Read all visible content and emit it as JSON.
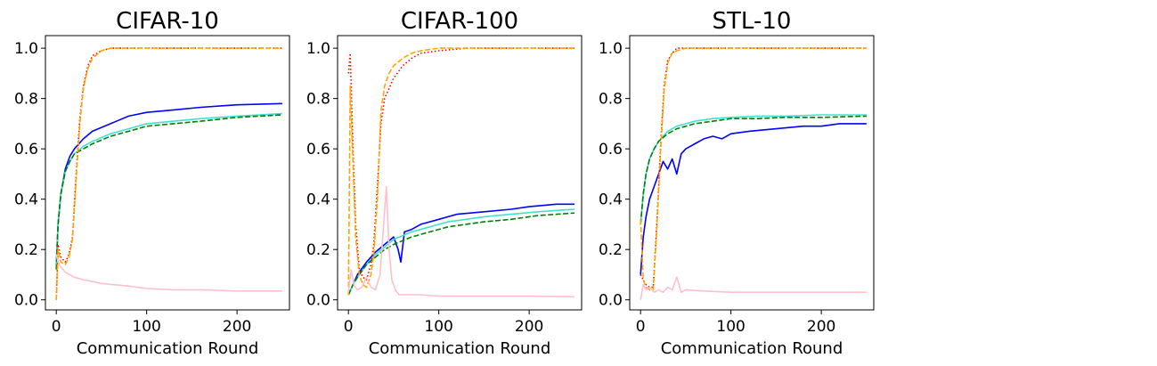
{
  "chart_data": [
    {
      "type": "line",
      "title": "CIFAR-10",
      "xlabel": "Communication Round",
      "ylabel": "",
      "xlim": [
        -12,
        258
      ],
      "ylim": [
        -0.04,
        1.05
      ],
      "xticks": [
        0,
        100,
        200
      ],
      "yticks": [
        0.0,
        0.2,
        0.4,
        0.6,
        0.8,
        1.0
      ],
      "grid": false,
      "series": [
        {
          "color": "#0000ff",
          "style": "solid",
          "x": [
            0,
            2,
            5,
            10,
            15,
            20,
            30,
            40,
            60,
            80,
            100,
            130,
            160,
            200,
            250
          ],
          "y": [
            0.14,
            0.3,
            0.42,
            0.52,
            0.57,
            0.6,
            0.64,
            0.67,
            0.7,
            0.73,
            0.745,
            0.755,
            0.765,
            0.775,
            0.78
          ]
        },
        {
          "color": "#40e0d0",
          "style": "solid",
          "x": [
            0,
            2,
            5,
            10,
            15,
            20,
            30,
            40,
            60,
            80,
            100,
            130,
            160,
            200,
            250
          ],
          "y": [
            0.14,
            0.3,
            0.42,
            0.51,
            0.55,
            0.58,
            0.61,
            0.63,
            0.66,
            0.68,
            0.7,
            0.71,
            0.72,
            0.73,
            0.74
          ]
        },
        {
          "color": "#008000",
          "style": "dashed",
          "x": [
            0,
            2,
            5,
            10,
            15,
            20,
            30,
            40,
            60,
            80,
            100,
            130,
            160,
            200,
            250
          ],
          "y": [
            0.12,
            0.3,
            0.42,
            0.51,
            0.55,
            0.58,
            0.6,
            0.62,
            0.65,
            0.67,
            0.69,
            0.7,
            0.71,
            0.725,
            0.735
          ]
        },
        {
          "color": "#ff0000",
          "style": "dotted",
          "x": [
            0,
            2,
            5,
            10,
            14,
            18,
            22,
            26,
            30,
            35,
            40,
            50,
            60,
            80,
            250
          ],
          "y": [
            0.0,
            0.22,
            0.17,
            0.15,
            0.18,
            0.25,
            0.5,
            0.72,
            0.85,
            0.93,
            0.97,
            0.99,
            1.0,
            1.0,
            1.0
          ]
        },
        {
          "color": "#ffa500",
          "style": "dashed",
          "x": [
            0,
            2,
            5,
            10,
            14,
            18,
            22,
            26,
            30,
            35,
            40,
            50,
            60,
            80,
            250
          ],
          "y": [
            0.0,
            0.2,
            0.15,
            0.14,
            0.17,
            0.24,
            0.48,
            0.7,
            0.84,
            0.92,
            0.96,
            0.99,
            1.0,
            1.0,
            1.0
          ]
        },
        {
          "color": "#ffc0cb",
          "style": "solid",
          "x": [
            0,
            2,
            5,
            10,
            20,
            30,
            50,
            80,
            100,
            130,
            160,
            200,
            250
          ],
          "y": [
            0.18,
            0.15,
            0.13,
            0.11,
            0.09,
            0.08,
            0.065,
            0.055,
            0.045,
            0.04,
            0.04,
            0.035,
            0.035
          ]
        }
      ]
    },
    {
      "type": "line",
      "title": "CIFAR-100",
      "xlabel": "Communication Round",
      "ylabel": "",
      "xlim": [
        -12,
        258
      ],
      "ylim": [
        -0.04,
        1.05
      ],
      "xticks": [
        0,
        100,
        200
      ],
      "yticks": [
        0.0,
        0.2,
        0.4,
        0.6,
        0.8,
        1.0
      ],
      "grid": false,
      "series": [
        {
          "color": "#0000ff",
          "style": "solid",
          "x": [
            0,
            5,
            10,
            20,
            30,
            40,
            50,
            55,
            58,
            62,
            70,
            80,
            100,
            120,
            150,
            180,
            200,
            230,
            250
          ],
          "y": [
            0.02,
            0.06,
            0.1,
            0.15,
            0.19,
            0.22,
            0.25,
            0.2,
            0.15,
            0.27,
            0.28,
            0.3,
            0.32,
            0.34,
            0.35,
            0.36,
            0.37,
            0.38,
            0.38
          ]
        },
        {
          "color": "#40e0d0",
          "style": "solid",
          "x": [
            0,
            5,
            10,
            20,
            30,
            40,
            50,
            70,
            90,
            110,
            130,
            150,
            180,
            210,
            250
          ],
          "y": [
            0.02,
            0.06,
            0.09,
            0.14,
            0.18,
            0.21,
            0.24,
            0.27,
            0.29,
            0.31,
            0.32,
            0.33,
            0.34,
            0.35,
            0.36
          ]
        },
        {
          "color": "#008000",
          "style": "dashed",
          "x": [
            0,
            5,
            10,
            20,
            30,
            40,
            50,
            70,
            90,
            110,
            130,
            150,
            180,
            210,
            250
          ],
          "y": [
            0.02,
            0.06,
            0.09,
            0.14,
            0.17,
            0.2,
            0.22,
            0.25,
            0.27,
            0.29,
            0.3,
            0.31,
            0.32,
            0.335,
            0.345
          ]
        },
        {
          "color": "#ff0000",
          "style": "dotted",
          "x": [
            0,
            2,
            5,
            8,
            12,
            16,
            20,
            25,
            28,
            32,
            36,
            40,
            45,
            50,
            60,
            70,
            80,
            100,
            130,
            250
          ],
          "y": [
            0.9,
            0.98,
            0.6,
            0.3,
            0.12,
            0.09,
            0.08,
            0.14,
            0.22,
            0.45,
            0.7,
            0.8,
            0.84,
            0.88,
            0.93,
            0.96,
            0.98,
            0.99,
            1.0,
            1.0
          ]
        },
        {
          "color": "#ffa500",
          "style": "dashed",
          "x": [
            0,
            2,
            5,
            8,
            12,
            16,
            20,
            25,
            28,
            32,
            36,
            40,
            45,
            50,
            60,
            70,
            80,
            100,
            130,
            250
          ],
          "y": [
            0.02,
            0.85,
            0.55,
            0.25,
            0.1,
            0.06,
            0.05,
            0.1,
            0.18,
            0.4,
            0.75,
            0.85,
            0.9,
            0.93,
            0.96,
            0.98,
            0.99,
            1.0,
            1.0,
            1.0
          ]
        },
        {
          "color": "#ffc0cb",
          "style": "solid",
          "x": [
            0,
            3,
            6,
            10,
            15,
            20,
            25,
            30,
            35,
            38,
            42,
            45,
            48,
            52,
            56,
            60,
            80,
            100,
            150,
            200,
            250
          ],
          "y": [
            0.03,
            0.12,
            0.06,
            0.04,
            0.05,
            0.09,
            0.05,
            0.04,
            0.1,
            0.25,
            0.45,
            0.2,
            0.08,
            0.04,
            0.02,
            0.02,
            0.02,
            0.015,
            0.015,
            0.015,
            0.012
          ]
        }
      ]
    },
    {
      "type": "line",
      "title": "STL-10",
      "xlabel": "Communication Round",
      "ylabel": "",
      "xlim": [
        -12,
        258
      ],
      "ylim": [
        -0.04,
        1.05
      ],
      "xticks": [
        0,
        100,
        200
      ],
      "yticks": [
        0.0,
        0.2,
        0.4,
        0.6,
        0.8,
        1.0
      ],
      "grid": false,
      "series": [
        {
          "color": "#0000ff",
          "style": "solid",
          "x": [
            0,
            3,
            6,
            10,
            15,
            20,
            25,
            30,
            35,
            40,
            45,
            50,
            60,
            70,
            80,
            90,
            100,
            120,
            150,
            180,
            200,
            220,
            250
          ],
          "y": [
            0.1,
            0.25,
            0.33,
            0.4,
            0.45,
            0.5,
            0.55,
            0.52,
            0.56,
            0.5,
            0.58,
            0.6,
            0.62,
            0.64,
            0.65,
            0.64,
            0.66,
            0.67,
            0.68,
            0.69,
            0.69,
            0.7,
            0.7
          ]
        },
        {
          "color": "#40e0d0",
          "style": "solid",
          "x": [
            0,
            3,
            6,
            10,
            15,
            20,
            30,
            40,
            60,
            80,
            100,
            130,
            160,
            200,
            250
          ],
          "y": [
            0.3,
            0.42,
            0.5,
            0.56,
            0.6,
            0.63,
            0.67,
            0.69,
            0.71,
            0.72,
            0.725,
            0.73,
            0.73,
            0.735,
            0.735
          ]
        },
        {
          "color": "#008000",
          "style": "dashed",
          "x": [
            0,
            3,
            6,
            10,
            15,
            20,
            30,
            40,
            60,
            80,
            100,
            130,
            160,
            200,
            250
          ],
          "y": [
            0.3,
            0.42,
            0.5,
            0.56,
            0.6,
            0.63,
            0.66,
            0.68,
            0.7,
            0.71,
            0.72,
            0.72,
            0.725,
            0.725,
            0.73
          ]
        },
        {
          "color": "#ff0000",
          "style": "dotted",
          "x": [
            0,
            3,
            6,
            10,
            14,
            18,
            22,
            26,
            30,
            35,
            40,
            50,
            60,
            250
          ],
          "y": [
            0.1,
            0.08,
            0.06,
            0.05,
            0.05,
            0.3,
            0.6,
            0.85,
            0.95,
            0.98,
            1.0,
            1.0,
            1.0,
            1.0
          ]
        },
        {
          "color": "#ffa500",
          "style": "dashed",
          "x": [
            0,
            3,
            6,
            10,
            14,
            18,
            22,
            26,
            30,
            35,
            40,
            50,
            60,
            250
          ],
          "y": [
            0.32,
            0.08,
            0.05,
            0.04,
            0.04,
            0.28,
            0.58,
            0.83,
            0.94,
            0.98,
            0.99,
            1.0,
            1.0,
            1.0
          ]
        },
        {
          "color": "#ffc0cb",
          "style": "solid",
          "x": [
            0,
            3,
            6,
            10,
            15,
            20,
            25,
            30,
            35,
            40,
            45,
            50,
            70,
            100,
            150,
            200,
            250
          ],
          "y": [
            0.0,
            0.06,
            0.04,
            0.05,
            0.03,
            0.04,
            0.03,
            0.05,
            0.04,
            0.09,
            0.03,
            0.04,
            0.035,
            0.03,
            0.03,
            0.03,
            0.03
          ]
        }
      ]
    }
  ]
}
